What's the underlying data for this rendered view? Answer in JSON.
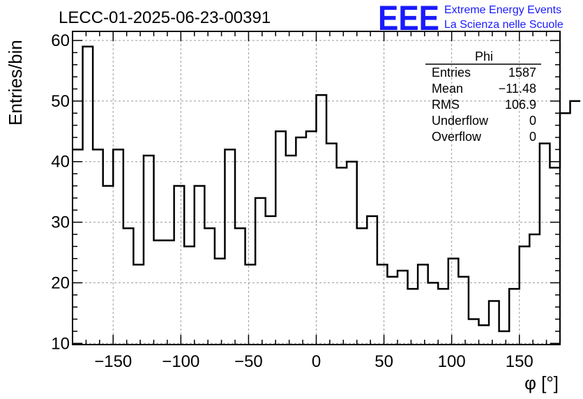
{
  "logo": {
    "text": "EEE",
    "line1": "Extreme Energy Events",
    "line2": "La Scienza nelle Scuole",
    "color": "#1a1aff"
  },
  "stats": {
    "name": "Phi",
    "rows": [
      {
        "label": "Entries",
        "value": "1587"
      },
      {
        "label": "Mean",
        "value": "−11.48"
      },
      {
        "label": "RMS",
        "value": "106.9"
      },
      {
        "label": "Underflow",
        "value": "0"
      },
      {
        "label": "Overflow",
        "value": "0"
      }
    ]
  },
  "chart_data": {
    "type": "histogram",
    "title": "LECC-01-2025-06-23-00391",
    "xlabel": "φ [°]",
    "ylabel": "Entries/bin",
    "xlim": [
      -180,
      180
    ],
    "ylim": [
      9.8,
      61.5
    ],
    "xticks": [
      -150,
      -100,
      -50,
      0,
      50,
      100,
      150
    ],
    "xtick_labels": [
      "−150",
      "−100",
      "−50",
      "0",
      "50",
      "100",
      "150"
    ],
    "yticks": [
      10,
      20,
      30,
      40,
      50,
      60
    ],
    "ytick_labels": [
      "10",
      "20",
      "30",
      "40",
      "50",
      "60"
    ],
    "grid": true,
    "line_color": "#000000",
    "grid_color": "#999999",
    "bin_width": 7.5,
    "x_start": -180,
    "values": [
      42,
      59,
      42,
      36,
      42,
      29,
      23,
      41,
      27,
      27,
      36,
      26,
      36,
      29,
      24,
      42,
      29,
      23,
      34,
      31,
      45,
      41,
      44,
      45,
      51,
      43,
      39,
      40,
      29,
      31,
      23,
      21,
      22,
      19,
      23,
      20,
      19,
      24,
      21,
      14,
      13,
      17,
      12,
      19,
      26,
      28,
      43,
      39,
      48,
      50
    ]
  }
}
